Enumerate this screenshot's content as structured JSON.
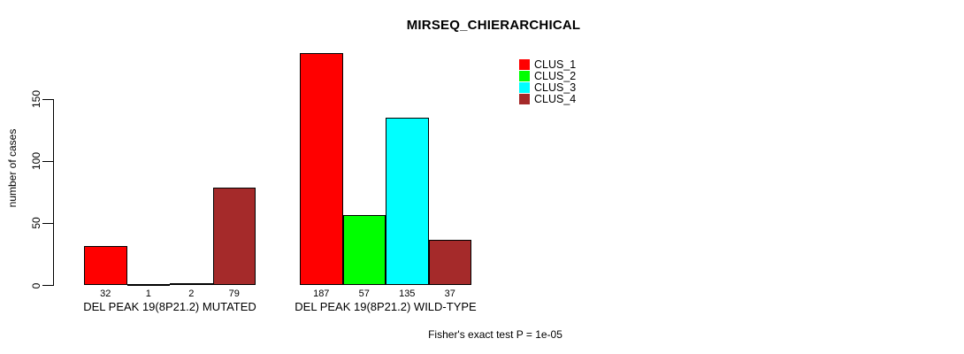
{
  "chart_data": {
    "type": "bar",
    "title": "MIRSEQ_CHIERARCHICAL",
    "ylabel": "number of cases",
    "xlabel": "",
    "ylim": [
      0,
      150
    ],
    "yticks": [
      0,
      50,
      100,
      150
    ],
    "grid": false,
    "legend_position": "top-right",
    "bar_value_labels": true,
    "bar_border_color": "#000000",
    "groups": [
      "DEL PEAK 19(8P21.2) MUTATED",
      "DEL PEAK 19(8P21.2) WILD-TYPE"
    ],
    "series": [
      {
        "name": "CLUS_1",
        "color": "#FF0000",
        "values": [
          32,
          187
        ]
      },
      {
        "name": "CLUS_2",
        "color": "#00FF00",
        "values": [
          1,
          57
        ]
      },
      {
        "name": "CLUS_3",
        "color": "#00FFFF",
        "values": [
          2,
          135
        ]
      },
      {
        "name": "CLUS_4",
        "color": "#A52A2A",
        "values": [
          79,
          37
        ]
      }
    ],
    "annotation": "Fisher's exact test P = 1e-05"
  }
}
